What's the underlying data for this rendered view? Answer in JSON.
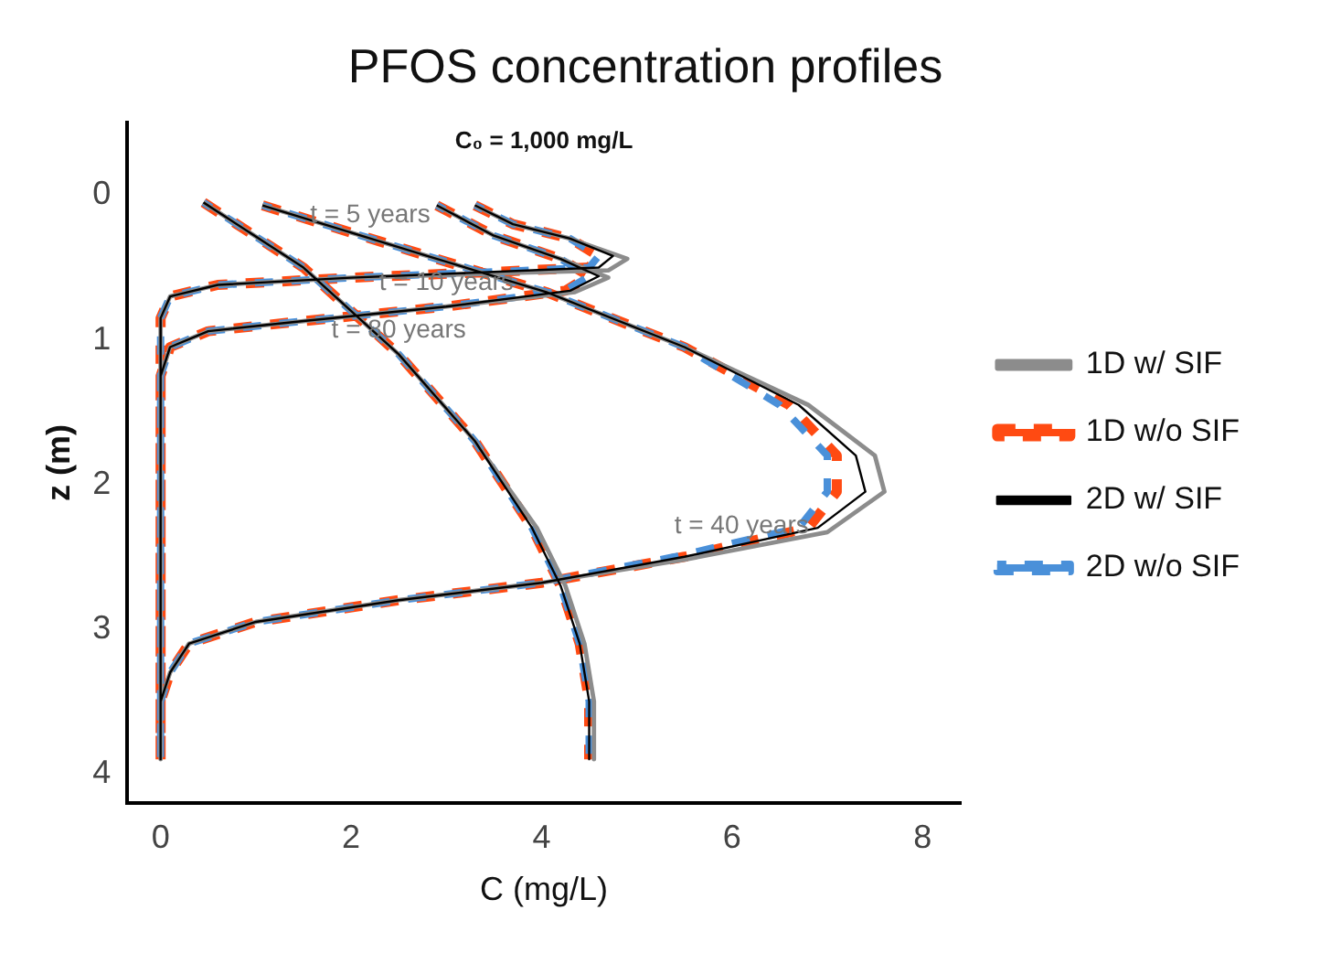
{
  "chart_data": {
    "type": "line",
    "title": "PFOS concentration profiles",
    "xlabel": "C (mg/L)",
    "ylabel": "z (m)",
    "xlim": [
      -0.35,
      8.4
    ],
    "xticks": [
      0,
      2,
      4,
      6,
      8
    ],
    "ylim": [
      4.2,
      -0.5
    ],
    "yticks": [
      0,
      1,
      2,
      3,
      4
    ],
    "grid": false,
    "legend": "right",
    "marker": "none",
    "annotations": [
      "C₀ = 1,000 mg/L",
      {
        "text": "t = 5 years",
        "x": 2.2,
        "y": 0.3
      },
      {
        "text": "t = 10 years",
        "x": 3.0,
        "y": 0.77
      },
      {
        "text": "t = 80 years",
        "x": 2.5,
        "y": 1.1
      },
      {
        "text": "t = 40 years",
        "x": 6.1,
        "y": 2.45
      }
    ],
    "series": [
      {
        "name": "1D w/ SIF",
        "color": "#8c8c8c",
        "line_style": "solid",
        "x": [
          3.3,
          3.7,
          4.3,
          4.9,
          4.7,
          3.5,
          2.0,
          0.6,
          0.1,
          0,
          0,
          null,
          2.9,
          3.5,
          4.2,
          4.7,
          4.35,
          3.0,
          1.5,
          0.5,
          0.1,
          0,
          0,
          null,
          1.07,
          2.8,
          4.05,
          5.5,
          6.8,
          7.5,
          7.6,
          7.0,
          5.5,
          4.0,
          2.5,
          1.0,
          0.3,
          0.1,
          0,
          0,
          null,
          0.45,
          1.5,
          2.5,
          3.3,
          3.95,
          4.25,
          4.45,
          4.55,
          4.55
        ],
        "values": [
          0.07,
          0.2,
          0.3,
          0.44,
          0.52,
          0.54,
          0.57,
          0.62,
          0.7,
          0.85,
          3.9,
          null,
          0.07,
          0.28,
          0.44,
          0.57,
          0.67,
          0.77,
          0.87,
          0.94,
          1.05,
          1.25,
          3.9,
          null,
          0.07,
          0.42,
          0.67,
          1.05,
          1.45,
          1.8,
          2.05,
          2.33,
          2.52,
          2.68,
          2.8,
          2.95,
          3.1,
          3.3,
          3.5,
          3.9,
          null,
          0.05,
          0.5,
          1.1,
          1.7,
          2.3,
          2.7,
          3.1,
          3.5,
          3.9
        ]
      },
      {
        "name": "1D w/o SIF",
        "color": "#ff4a12",
        "line_style": "dashed",
        "x": [
          3.3,
          3.7,
          4.3,
          4.6,
          4.5,
          3.5,
          2.0,
          0.6,
          0.1,
          0,
          0,
          null,
          2.9,
          3.5,
          4.2,
          4.5,
          4.25,
          3.0,
          1.5,
          0.5,
          0.1,
          0,
          0,
          null,
          1.07,
          2.8,
          4.05,
          5.5,
          6.6,
          7.1,
          7.1,
          6.8,
          5.5,
          4.0,
          2.5,
          1.0,
          0.3,
          0.1,
          0,
          0,
          null,
          0.45,
          1.5,
          2.5,
          3.3,
          3.9,
          4.2,
          4.4,
          4.5,
          4.5
        ],
        "values": [
          0.07,
          0.2,
          0.3,
          0.42,
          0.5,
          0.53,
          0.57,
          0.62,
          0.7,
          0.85,
          3.9,
          null,
          0.07,
          0.28,
          0.44,
          0.56,
          0.66,
          0.77,
          0.87,
          0.94,
          1.05,
          1.25,
          3.9,
          null,
          0.07,
          0.42,
          0.67,
          1.05,
          1.45,
          1.8,
          2.05,
          2.3,
          2.5,
          2.68,
          2.8,
          2.95,
          3.1,
          3.3,
          3.5,
          3.9,
          null,
          0.05,
          0.5,
          1.1,
          1.7,
          2.3,
          2.7,
          3.1,
          3.5,
          3.9
        ]
      },
      {
        "name": "2D w/ SIF",
        "color": "#000000",
        "line_style": "solid",
        "x": [
          3.3,
          3.7,
          4.3,
          4.75,
          4.6,
          3.5,
          2.0,
          0.6,
          0.1,
          0,
          0,
          null,
          2.9,
          3.5,
          4.2,
          4.6,
          4.3,
          3.0,
          1.5,
          0.5,
          0.1,
          0,
          0,
          null,
          1.07,
          2.8,
          4.05,
          5.5,
          6.7,
          7.3,
          7.4,
          6.9,
          5.5,
          4.0,
          2.5,
          1.0,
          0.3,
          0.1,
          0,
          0,
          null,
          0.45,
          1.5,
          2.5,
          3.3,
          3.9,
          4.2,
          4.4,
          4.5,
          4.5
        ],
        "values": [
          0.07,
          0.2,
          0.3,
          0.42,
          0.5,
          0.53,
          0.57,
          0.62,
          0.7,
          0.85,
          3.9,
          null,
          0.07,
          0.28,
          0.44,
          0.56,
          0.66,
          0.77,
          0.87,
          0.94,
          1.05,
          1.25,
          3.9,
          null,
          0.07,
          0.42,
          0.67,
          1.05,
          1.45,
          1.8,
          2.05,
          2.3,
          2.5,
          2.68,
          2.8,
          2.95,
          3.1,
          3.3,
          3.5,
          3.9,
          null,
          0.05,
          0.5,
          1.1,
          1.7,
          2.3,
          2.7,
          3.1,
          3.5,
          3.9
        ]
      },
      {
        "name": "2D w/o SIF",
        "color": "#4a90d9",
        "line_style": "dashed",
        "x": [
          3.3,
          3.7,
          4.3,
          4.6,
          4.5,
          3.5,
          2.0,
          0.6,
          0.1,
          0,
          0,
          null,
          2.9,
          3.5,
          4.2,
          4.5,
          4.25,
          3.0,
          1.5,
          0.5,
          0.1,
          0,
          0,
          null,
          1.07,
          2.8,
          4.05,
          5.5,
          6.5,
          7.0,
          7.0,
          6.7,
          5.4,
          4.0,
          2.5,
          1.0,
          0.3,
          0.1,
          0,
          0,
          null,
          0.45,
          1.5,
          2.5,
          3.3,
          3.9,
          4.2,
          4.4,
          4.5,
          4.5
        ],
        "values": [
          0.07,
          0.2,
          0.3,
          0.42,
          0.5,
          0.53,
          0.57,
          0.62,
          0.7,
          0.85,
          3.9,
          null,
          0.07,
          0.28,
          0.44,
          0.56,
          0.66,
          0.77,
          0.87,
          0.94,
          1.05,
          1.25,
          3.9,
          null,
          0.07,
          0.42,
          0.67,
          1.05,
          1.45,
          1.8,
          2.05,
          2.3,
          2.5,
          2.68,
          2.8,
          2.95,
          3.1,
          3.3,
          3.5,
          3.9,
          null,
          0.05,
          0.5,
          1.1,
          1.7,
          2.3,
          2.7,
          3.1,
          3.5,
          3.9
        ]
      }
    ]
  }
}
